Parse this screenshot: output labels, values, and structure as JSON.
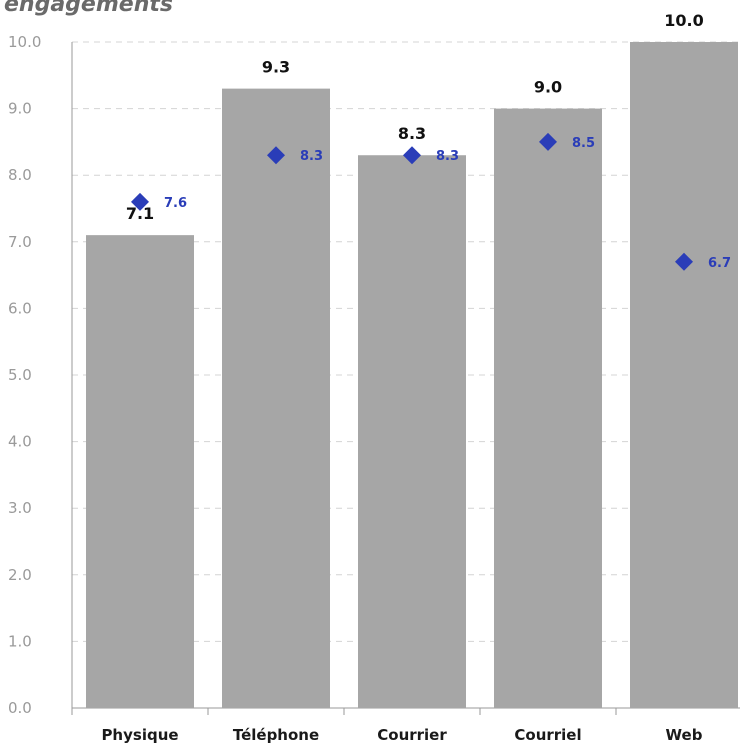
{
  "chart_data": {
    "type": "bar",
    "title": "engagements",
    "categories": [
      "Physique",
      "Téléphone",
      "Courrier",
      "Courriel",
      "Web"
    ],
    "series": [
      {
        "values": [
          7.1,
          9.3,
          8.3,
          9.0,
          10.0
        ],
        "color": "#a6a6a6",
        "kind": "bar",
        "labels": [
          "7.1",
          "9.3",
          "8.3",
          "9.0",
          "10.0"
        ]
      },
      {
        "values": [
          7.6,
          8.3,
          8.3,
          8.5,
          6.7
        ],
        "color": "#2a3db8",
        "kind": "marker-diamond",
        "labels": [
          "7.6",
          "8.3",
          "8.3",
          "8.5",
          "6.7"
        ]
      }
    ],
    "ylim": [
      0,
      10
    ],
    "yticks": [
      "0.0",
      "1.0",
      "2.0",
      "3.0",
      "4.0",
      "5.0",
      "6.0",
      "7.0",
      "8.0",
      "9.0",
      "10.0"
    ],
    "grid": true,
    "legend": "none"
  }
}
